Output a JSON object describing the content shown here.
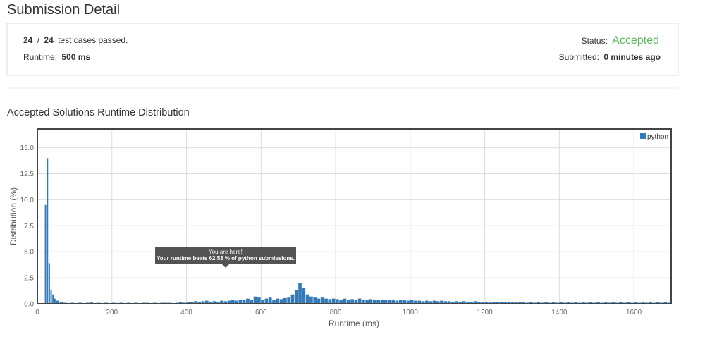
{
  "header": {
    "title": "Submission Detail",
    "passed": "24",
    "separator": "/",
    "total": "24",
    "passed_text": "test cases passed.",
    "runtime_label": "Runtime:",
    "runtime": "500 ms",
    "status_label": "Status:",
    "status": "Accepted",
    "submitted_label": "Submitted:",
    "submitted": "0 minutes ago"
  },
  "tooltip": {
    "line1": "You are here!",
    "line2": "Your runtime beats 62.53 % of python submissions."
  },
  "chart_data": {
    "type": "histogram",
    "title": "Accepted Solutions Runtime Distribution",
    "x_label": "Runtime (ms)",
    "y_label": "Distribution (%)",
    "series": [
      {
        "name": "python",
        "color": "#337ab7"
      }
    ],
    "bins": [
      20,
      25,
      30,
      35,
      40,
      45,
      50,
      60,
      70,
      80,
      90,
      100,
      110,
      120,
      130,
      140,
      150,
      160,
      170,
      180,
      190,
      200,
      210,
      220,
      230,
      240,
      250,
      260,
      270,
      280,
      290,
      300,
      310,
      320,
      330,
      340,
      350,
      360,
      370,
      380,
      390,
      400,
      410,
      420,
      430,
      440,
      450,
      460,
      470,
      480,
      490,
      500,
      510,
      520,
      530,
      540,
      550,
      560,
      570,
      580,
      590,
      600,
      610,
      620,
      630,
      640,
      650,
      660,
      670,
      680,
      690,
      700,
      710,
      720,
      730,
      740,
      750,
      760,
      770,
      780,
      790,
      800,
      810,
      820,
      830,
      840,
      850,
      860,
      870,
      880,
      890,
      900,
      910,
      920,
      930,
      940,
      950,
      960,
      970,
      980,
      990,
      1000,
      1010,
      1020,
      1030,
      1040,
      1050,
      1060,
      1070,
      1080,
      1090,
      1100,
      1110,
      1120,
      1130,
      1140,
      1150,
      1160,
      1170,
      1180,
      1190,
      1200,
      1210,
      1220,
      1230,
      1240,
      1250,
      1260,
      1270,
      1280,
      1290,
      1300,
      1310,
      1320,
      1330,
      1340,
      1350,
      1360,
      1370,
      1380,
      1390,
      1400,
      1410,
      1420,
      1430,
      1440,
      1450,
      1460,
      1470,
      1480,
      1490,
      1500,
      1510,
      1520,
      1530,
      1540,
      1550,
      1560,
      1570,
      1580,
      1590,
      1600,
      1610,
      1620,
      1630,
      1640,
      1650,
      1660,
      1670,
      1680,
      1690,
      1700
    ],
    "values": [
      9.5,
      14,
      3.9,
      1.3,
      0.9,
      0.5,
      0.3,
      0.15,
      0.1,
      0.05,
      0.1,
      0.05,
      0.1,
      0.05,
      0.1,
      0.15,
      0.05,
      0.1,
      0.05,
      0.1,
      0.05,
      0.1,
      0.05,
      0.1,
      0.05,
      0.1,
      0.05,
      0.1,
      0.05,
      0.1,
      0.1,
      0.05,
      0.1,
      0.05,
      0.1,
      0.1,
      0.1,
      0.05,
      0.1,
      0.15,
      0.1,
      0.15,
      0.2,
      0.25,
      0.2,
      0.25,
      0.3,
      0.2,
      0.25,
      0.2,
      0.3,
      0.25,
      0.3,
      0.35,
      0.3,
      0.4,
      0.35,
      0.5,
      0.4,
      0.7,
      0.6,
      0.4,
      0.5,
      0.6,
      0.4,
      0.5,
      0.45,
      0.55,
      0.6,
      0.9,
      1.3,
      2.0,
      1.5,
      0.9,
      0.7,
      0.6,
      0.5,
      0.6,
      0.5,
      0.45,
      0.5,
      0.45,
      0.4,
      0.5,
      0.4,
      0.45,
      0.4,
      0.5,
      0.35,
      0.4,
      0.45,
      0.4,
      0.35,
      0.4,
      0.35,
      0.4,
      0.35,
      0.3,
      0.4,
      0.35,
      0.3,
      0.35,
      0.3,
      0.3,
      0.25,
      0.3,
      0.25,
      0.3,
      0.25,
      0.3,
      0.25,
      0.25,
      0.2,
      0.25,
      0.2,
      0.25,
      0.2,
      0.2,
      0.25,
      0.2,
      0.2,
      0.2,
      0.15,
      0.2,
      0.15,
      0.2,
      0.15,
      0.2,
      0.15,
      0.2,
      0.15,
      0.15,
      0.1,
      0.15,
      0.1,
      0.15,
      0.1,
      0.15,
      0.1,
      0.15,
      0.1,
      0.15,
      0.1,
      0.15,
      0.1,
      0.15,
      0.1,
      0.15,
      0.1,
      0.15,
      0.1,
      0.15,
      0.1,
      0.15,
      0.1,
      0.15,
      0.1,
      0.15,
      0.1,
      0.15,
      0.1,
      0.15,
      0.1,
      0.15,
      0.1,
      0.15,
      0.1,
      0.15,
      0.1,
      0.15,
      0.1
    ],
    "xlim": [
      0,
      1700
    ],
    "xticks": [
      0,
      200,
      400,
      600,
      800,
      1000,
      1200,
      1400,
      1600
    ],
    "ylim": [
      0,
      16.8
    ],
    "yticks": [
      {
        "value": 0,
        "label": "0.0"
      },
      2.5,
      {
        "value": 5,
        "label": "5.0"
      },
      7.5,
      {
        "value": 10,
        "label": "10.0"
      },
      12.5,
      {
        "value": 15,
        "label": "15.0"
      }
    ],
    "grid": true,
    "legend": "top-right"
  }
}
